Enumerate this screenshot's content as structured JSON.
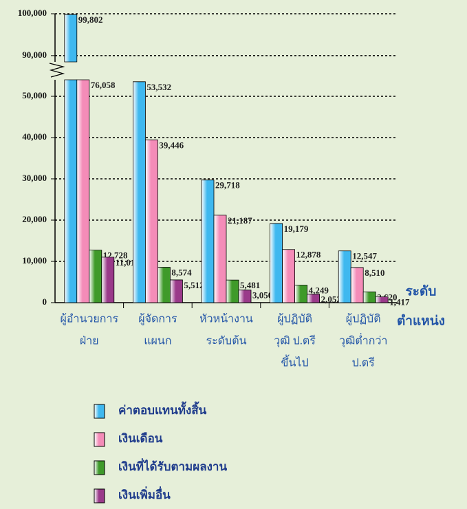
{
  "chart_data": {
    "type": "bar",
    "categories": [
      [
        "ผู้อำนวยการ",
        "ฝ่าย"
      ],
      [
        "ผู้จัดการ",
        "แผนก"
      ],
      [
        "หัวหน้างาน",
        "ระดับต้น"
      ],
      [
        "ผู้ปฏิบัติ",
        "วุฒิ ป.ตรี",
        "ขึ้นไป"
      ],
      [
        "ผู้ปฏิบัติ",
        "วุฒิต่ำกว่า",
        "ป.ตรี"
      ]
    ],
    "xlabel": [
      "ระดับ",
      "ตำแหน่ง"
    ],
    "series": [
      {
        "name": "ค่าตอบแทนทั้งสิ้น",
        "color": "#3fb8ef",
        "values": [
          99802,
          53532,
          29718,
          19179,
          12547
        ],
        "value_labels": [
          "99,802",
          "53,532",
          "29,718",
          "19,179",
          "12,547"
        ]
      },
      {
        "name": "เงินเดือน",
        "color": "#f48cb8",
        "values": [
          76058,
          39446,
          21187,
          12878,
          8510
        ],
        "value_labels": [
          "76,058",
          "39,446",
          "21,187",
          "12,878",
          "8,510"
        ]
      },
      {
        "name": "เงินที่ได้รับตามผลงาน",
        "color": "#3f9a2a",
        "values": [
          12728,
          8574,
          5481,
          4249,
          2620
        ],
        "value_labels": [
          "12,728",
          "8,574",
          "5,481",
          "4,249",
          "2,620"
        ]
      },
      {
        "name": "เงินเพิ่มอื่น",
        "color": "#9a3a8a",
        "values": [
          11016,
          5512,
          3050,
          2052,
          1417
        ],
        "value_labels": [
          "11,016",
          "5,512",
          "3,050",
          "2,052",
          "1,417"
        ]
      }
    ],
    "ylim": [
      0,
      100000
    ],
    "axis_break": [
      54000,
      88500
    ],
    "yticks": [
      0,
      {
        "value": 10000,
        "label": "10,000"
      },
      {
        "value": 20000,
        "label": "20,000"
      },
      {
        "value": 30000,
        "label": "30,000"
      },
      {
        "value": 40000,
        "label": "40,000"
      },
      {
        "value": 50000,
        "label": "50,000"
      },
      {
        "value": 90000,
        "label": "90,000"
      },
      {
        "value": 100000,
        "label": "100,000"
      }
    ],
    "grid": true
  }
}
